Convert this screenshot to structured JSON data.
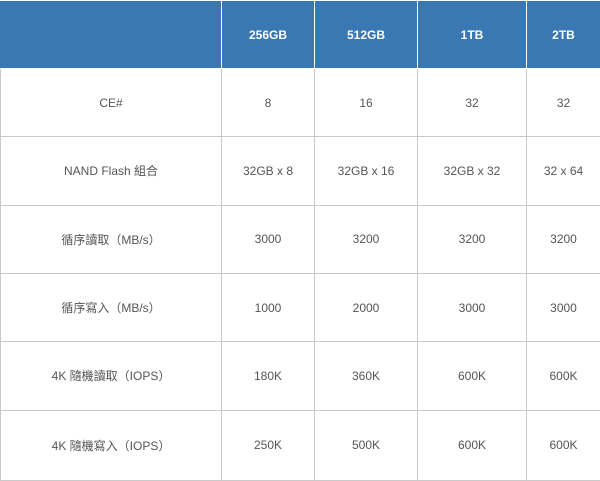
{
  "table": {
    "corner": "",
    "headers": [
      "256GB",
      "512GB",
      "1TB",
      "2TB"
    ],
    "rows": [
      {
        "label": "CE#",
        "values": [
          "8",
          "16",
          "32",
          "32"
        ]
      },
      {
        "label": "NAND Flash 組合",
        "values": [
          "32GB x 8",
          "32GB x 16",
          "32GB x 32",
          "32 x 64"
        ]
      },
      {
        "label": "循序讀取（MB/s）",
        "values": [
          "3000",
          "3200",
          "3200",
          "3200"
        ]
      },
      {
        "label": "循序寫入（MB/s）",
        "values": [
          "1000",
          "2000",
          "3000",
          "3000"
        ]
      },
      {
        "label": "4K 隨機讀取（IOPS）",
        "values": [
          "180K",
          "360K",
          "600K",
          "600K"
        ]
      },
      {
        "label": "4K 隨機寫入（IOPS）",
        "values": [
          "250K",
          "500K",
          "600K",
          "600K"
        ]
      }
    ]
  },
  "colors": {
    "header_bg": "#3a78b4",
    "header_text": "#ffffff",
    "cell_text": "#555555",
    "grid": "#c9c9c9"
  }
}
